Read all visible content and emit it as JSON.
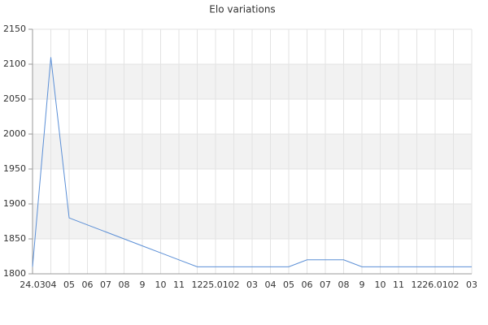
{
  "chart_data": {
    "type": "line",
    "title": "Elo variations",
    "categories": [
      "24.03",
      "04",
      "05",
      "06",
      "07",
      "08",
      "9",
      "10",
      "11",
      "12",
      "25.01",
      "02",
      "03",
      "04",
      "05",
      "06",
      "07",
      "08",
      "9",
      "10",
      "11",
      "12",
      "26.01",
      "02",
      "03"
    ],
    "series": [
      {
        "name": "Elo",
        "color": "#5b8fd6",
        "values": [
          1810,
          2110,
          1880,
          1870,
          1860,
          1850,
          1840,
          1830,
          1820,
          1810,
          1810,
          1810,
          1810,
          1810,
          1810,
          1820,
          1820,
          1820,
          1810,
          1810,
          1810,
          1810,
          1810,
          1810,
          1810
        ]
      }
    ],
    "ylim": [
      1800,
      2150
    ],
    "yticks": [
      1800,
      1850,
      1900,
      1950,
      2000,
      2050,
      2100,
      2150
    ],
    "grid": true
  }
}
